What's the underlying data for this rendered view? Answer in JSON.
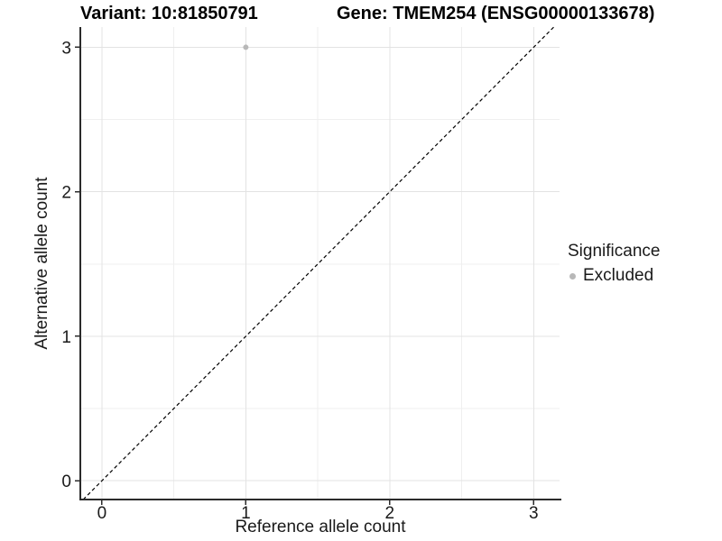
{
  "chart_data": {
    "type": "scatter",
    "title_left": "Variant: 10:81850791",
    "title_right": "Gene: TMEM254 (ENSG00000133678)",
    "xlabel": "Reference allele count",
    "ylabel": "Alternative allele count",
    "x_ticks": [
      0,
      1,
      2,
      3
    ],
    "y_ticks": [
      0,
      1,
      2,
      3
    ],
    "minor_ticks": [
      0.5,
      1.5,
      2.5
    ],
    "xlim": [
      -0.15,
      3.18
    ],
    "ylim": [
      -0.13,
      3.14
    ],
    "grid": {
      "major": true,
      "minor": true
    },
    "series": [
      {
        "name": "Excluded",
        "color": "#b8b8b8",
        "marker": "circle",
        "points": [
          [
            1,
            3
          ]
        ]
      }
    ],
    "reference_line": {
      "kind": "identity y=x",
      "style": "dashed",
      "color": "#000000"
    },
    "legend": {
      "title": "Significance",
      "position": "right",
      "entries": [
        "Excluded"
      ]
    }
  },
  "colors": {
    "background": "#ffffff",
    "grid_major": "#e3e3e3",
    "grid_minor": "#efefef",
    "axis": "#2b2b2b",
    "tick_text": "#1a1a1a",
    "reference_line": "#000000"
  }
}
